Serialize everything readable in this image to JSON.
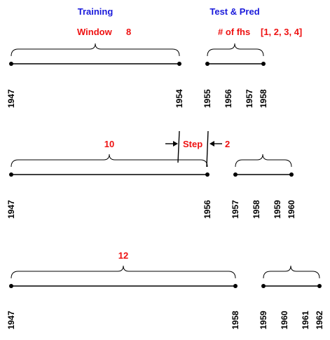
{
  "headers": {
    "training": "Training",
    "test_pred": "Test & Pred",
    "window_label": "Window",
    "window_value": "8",
    "fhs_label": "# of fhs",
    "fhs_value": "[1, 2, 3, 4]",
    "step_label": "Step",
    "step_value": "2"
  },
  "colors": {
    "blue": "#1a1adb",
    "red": "#ee1111",
    "black": "#000000"
  },
  "rows": [
    {
      "train_label": "",
      "train_years": [
        "1947",
        "1954"
      ],
      "test_years": [
        "1955",
        "1956",
        "1957",
        "1958"
      ]
    },
    {
      "train_label": "10",
      "train_years": [
        "1947",
        "1956"
      ],
      "test_years": [
        "1957",
        "1958",
        "1959",
        "1960"
      ]
    },
    {
      "train_label": "12",
      "train_years": [
        "1947",
        "1958"
      ],
      "test_years": [
        "1959",
        "1960",
        "1961",
        "1962"
      ]
    }
  ]
}
